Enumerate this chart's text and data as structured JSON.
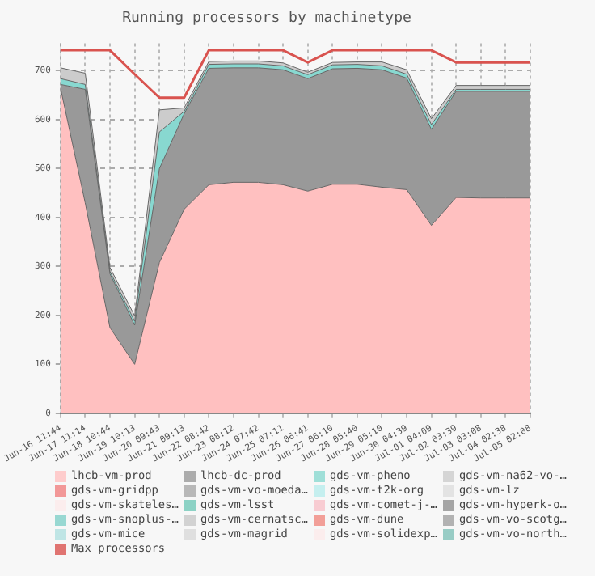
{
  "chart_data": {
    "type": "area",
    "stacked": true,
    "title": "Running processors by machinetype",
    "categories": [
      "Jun-16 11:44",
      "Jun-17 11:14",
      "Jun-18 10:44",
      "Jun-19 10:13",
      "Jun-20 09:43",
      "Jun-21 09:13",
      "Jun-22 08:42",
      "Jun-23 08:12",
      "Jun-24 07:42",
      "Jun-25 07:11",
      "Jun-26 06:41",
      "Jun-27 06:10",
      "Jun-28 05:40",
      "Jun-29 05:10",
      "Jun-30 04:39",
      "Jul-01 04:09",
      "Jul-02 03:39",
      "Jul-03 03:08",
      "Jul-04 02:38",
      "Jul-05 02:08"
    ],
    "series": [
      {
        "name": "lhcb-vm-prod",
        "color": "#ffc0c0",
        "values": [
          665,
          430,
          175,
          100,
          308,
          417,
          467,
          472,
          472,
          467,
          454,
          468,
          468,
          462,
          457,
          384,
          441,
          440,
          440,
          440
        ]
      },
      {
        "name": "lhcb-dc-prod",
        "color": "#999999",
        "values": [
          7,
          232,
          110,
          80,
          192,
          195,
          238,
          234,
          234,
          235,
          230,
          236,
          237,
          240,
          228,
          196,
          217,
          218,
          218,
          218
        ]
      },
      {
        "name": "gds-vm-pheno",
        "color": "#88d8d0",
        "values": [
          12,
          10,
          5,
          8,
          75,
          5,
          8,
          8,
          8,
          8,
          8,
          8,
          8,
          8,
          8,
          10,
          4,
          4,
          4,
          4
        ]
      },
      {
        "name": "gds-vm-na62-vo-…",
        "color": "#cccccc",
        "values": [
          22,
          23,
          8,
          11,
          45,
          7,
          6,
          6,
          6,
          6,
          5,
          5,
          5,
          8,
          9,
          12,
          8,
          8,
          8,
          8
        ]
      },
      {
        "name": "gds-vm-gridpp",
        "color": "#f08080",
        "values": [
          null,
          null,
          null,
          null,
          null,
          null,
          null,
          null,
          null,
          null,
          null,
          null,
          null,
          null,
          null,
          null,
          null,
          null,
          null,
          null
        ]
      },
      {
        "name": "gds-vm-vo-moeda…",
        "color": "#a8a8a8",
        "values": [
          null,
          null,
          null,
          null,
          null,
          null,
          null,
          null,
          null,
          null,
          null,
          null,
          null,
          null,
          null,
          null,
          null,
          null,
          null,
          null
        ]
      },
      {
        "name": "gds-vm-t2k-org",
        "color": "#b8ecec",
        "values": [
          null,
          null,
          null,
          null,
          null,
          null,
          null,
          null,
          null,
          null,
          null,
          null,
          null,
          null,
          null,
          null,
          null,
          null,
          null,
          null
        ]
      },
      {
        "name": "gds-vm-lz",
        "color": "#dddddd",
        "values": [
          null,
          null,
          null,
          null,
          null,
          null,
          null,
          null,
          null,
          null,
          null,
          null,
          null,
          null,
          null,
          null,
          null,
          null,
          null,
          null
        ]
      },
      {
        "name": "gds-vm-skateles…",
        "color": "#fbeaea",
        "values": [
          null,
          null,
          null,
          null,
          null,
          null,
          null,
          null,
          null,
          null,
          null,
          null,
          null,
          null,
          null,
          null,
          null,
          null,
          null,
          null
        ]
      },
      {
        "name": "gds-vm-lsst",
        "color": "#70c8b8",
        "values": [
          null,
          null,
          null,
          null,
          null,
          null,
          null,
          null,
          null,
          null,
          null,
          null,
          null,
          null,
          null,
          null,
          null,
          null,
          null,
          null
        ]
      },
      {
        "name": "gds-vm-comet-j-…",
        "color": "#f8c0c8",
        "values": [
          null,
          null,
          null,
          null,
          null,
          null,
          null,
          null,
          null,
          null,
          null,
          null,
          null,
          null,
          null,
          null,
          null,
          null,
          null,
          null
        ]
      },
      {
        "name": "gds-vm-hyperk-o…",
        "color": "#909090",
        "values": [
          null,
          null,
          null,
          null,
          null,
          null,
          null,
          null,
          null,
          null,
          null,
          null,
          null,
          null,
          null,
          null,
          null,
          null,
          null,
          null
        ]
      },
      {
        "name": "gds-vm-snoplus-…",
        "color": "#80d0c8",
        "values": [
          null,
          null,
          null,
          null,
          null,
          null,
          null,
          null,
          null,
          null,
          null,
          null,
          null,
          null,
          null,
          null,
          null,
          null,
          null,
          null
        ]
      },
      {
        "name": "gds-vm-cernatsc…",
        "color": "#c8c8c8",
        "values": [
          null,
          null,
          null,
          null,
          null,
          null,
          null,
          null,
          null,
          null,
          null,
          null,
          null,
          null,
          null,
          null,
          null,
          null,
          null,
          null
        ]
      },
      {
        "name": "gds-vm-dune",
        "color": "#f08880",
        "values": [
          null,
          null,
          null,
          null,
          null,
          null,
          null,
          null,
          null,
          null,
          null,
          null,
          null,
          null,
          null,
          null,
          null,
          null,
          null,
          null
        ]
      },
      {
        "name": "gds-vm-vo-scotg…",
        "color": "#a0a0a0",
        "values": [
          null,
          null,
          null,
          null,
          null,
          null,
          null,
          null,
          null,
          null,
          null,
          null,
          null,
          null,
          null,
          null,
          null,
          null,
          null,
          null
        ]
      },
      {
        "name": "gds-vm-mice",
        "color": "#b0e0e0",
        "values": [
          null,
          null,
          null,
          null,
          null,
          null,
          null,
          null,
          null,
          null,
          null,
          null,
          null,
          null,
          null,
          null,
          null,
          null,
          null,
          null
        ]
      },
      {
        "name": "gds-vm-magrid",
        "color": "#d8d8d8",
        "values": [
          null,
          null,
          null,
          null,
          null,
          null,
          null,
          null,
          null,
          null,
          null,
          null,
          null,
          null,
          null,
          null,
          null,
          null,
          null,
          null
        ]
      },
      {
        "name": "gds-vm-solidexp…",
        "color": "#fbeaea",
        "values": [
          null,
          null,
          null,
          null,
          null,
          null,
          null,
          null,
          null,
          null,
          null,
          null,
          null,
          null,
          null,
          null,
          null,
          null,
          null,
          null
        ]
      },
      {
        "name": "gds-vm-vo-north…",
        "color": "#80c0b8",
        "values": [
          null,
          null,
          null,
          null,
          null,
          null,
          null,
          null,
          null,
          null,
          null,
          null,
          null,
          null,
          null,
          null,
          null,
          null,
          null,
          null
        ]
      },
      {
        "name": "Max processors",
        "type": "line",
        "color": "#d9534f",
        "values": [
          742,
          742,
          742,
          693,
          645,
          645,
          742,
          742,
          742,
          742,
          717,
          742,
          742,
          742,
          742,
          742,
          717,
          717,
          717,
          717
        ]
      }
    ],
    "ylim": [
      0,
      756
    ],
    "yticks": [
      0,
      100,
      200,
      300,
      400,
      500,
      600,
      700
    ],
    "grid": true,
    "legend": "bottom",
    "marker": "none"
  }
}
